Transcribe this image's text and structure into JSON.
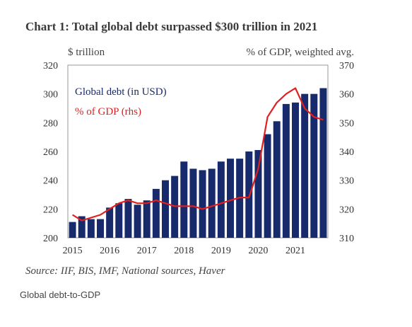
{
  "title": "Chart 1: Total global debt surpassed $300 trillion in 2021",
  "left_unit": "$ trillion",
  "right_unit": "% of GDP, weighted avg.",
  "source": "Source: IIF, BIS, IMF, National sources, Haver",
  "caption": "Global debt-to-GDP",
  "chart_data": {
    "type": "bar+line",
    "categories": [
      "2015Q1",
      "2015Q2",
      "2015Q3",
      "2015Q4",
      "2016Q1",
      "2016Q2",
      "2016Q3",
      "2016Q4",
      "2017Q1",
      "2017Q2",
      "2017Q3",
      "2017Q4",
      "2018Q1",
      "2018Q2",
      "2018Q3",
      "2018Q4",
      "2019Q1",
      "2019Q2",
      "2019Q3",
      "2019Q4",
      "2020Q1",
      "2020Q2",
      "2020Q3",
      "2020Q4",
      "2021Q1",
      "2021Q2",
      "2021Q3",
      "2021Q4"
    ],
    "x_ticks": [
      "2015",
      "2016",
      "2017",
      "2018",
      "2019",
      "2020",
      "2021"
    ],
    "series": [
      {
        "name": "Global debt (in USD)",
        "axis": "left",
        "kind": "bar",
        "color": "#172a6b",
        "values": [
          211,
          215,
          213,
          213,
          221,
          224,
          227,
          223,
          226,
          234,
          240,
          243,
          253,
          248,
          247,
          248,
          253,
          255,
          255,
          260,
          261,
          272,
          281,
          293,
          294,
          300,
          300,
          304
        ]
      },
      {
        "name": "% of GDP (rhs)",
        "axis": "right",
        "kind": "line",
        "color": "#e02020",
        "values": [
          318,
          316,
          317,
          318,
          320,
          322,
          323,
          322,
          322,
          323,
          322,
          321,
          321,
          321,
          320,
          321,
          322,
          323,
          324,
          324,
          334,
          352,
          357,
          360,
          362,
          355,
          352,
          351
        ]
      }
    ],
    "y_left": {
      "min": 200,
      "max": 320,
      "ticks": [
        200,
        220,
        240,
        260,
        280,
        300,
        320
      ]
    },
    "y_right": {
      "min": 310,
      "max": 370,
      "ticks": [
        310,
        320,
        330,
        340,
        350,
        360,
        370
      ]
    },
    "legend_position": "top-left",
    "grid": false
  }
}
